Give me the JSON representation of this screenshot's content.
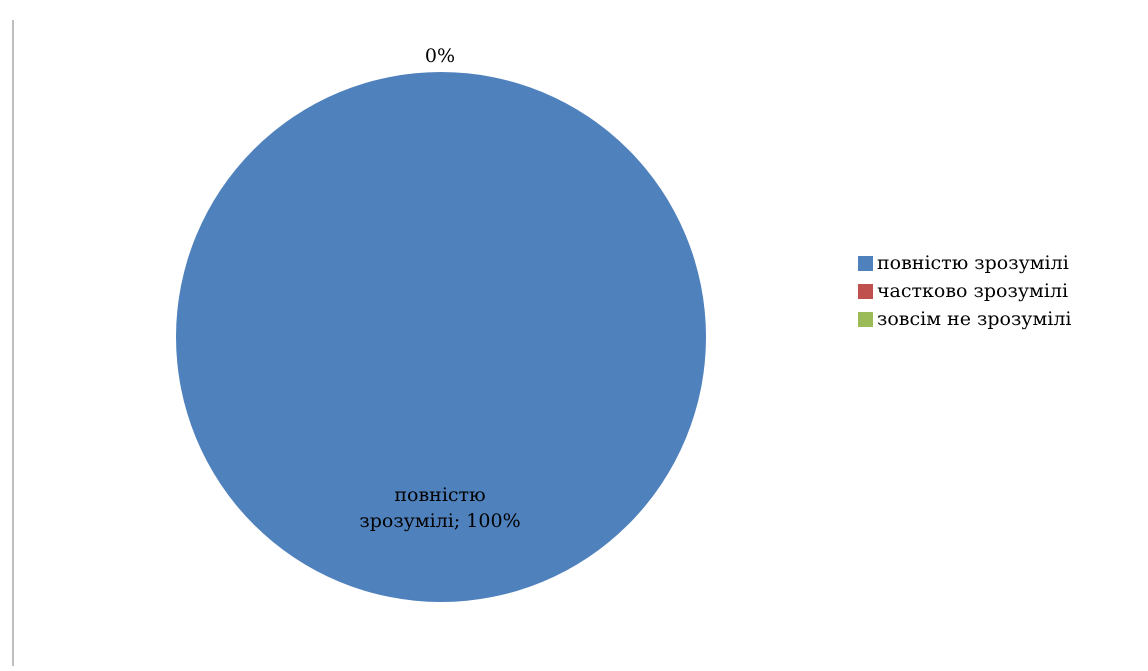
{
  "chart_data": {
    "type": "pie",
    "categories": [
      "повністю зрозумілі",
      "частково зрозумілі",
      "зовсім не зрозумілі"
    ],
    "values": [
      100,
      0,
      0
    ],
    "unit": "%",
    "colors": [
      "#4f81bd",
      "#c0504d",
      "#9bbb59"
    ],
    "data_labels": {
      "main": [
        "повністю",
        "зрозумілі; 100%"
      ],
      "top": "0%"
    },
    "legend_position": "right"
  },
  "legend": {
    "entries": [
      {
        "label": "повністю зрозумілі",
        "color": "#4f81bd"
      },
      {
        "label": "частково зрозумілі",
        "color": "#c0504d"
      },
      {
        "label": "зовсім не зрозумілі",
        "color": "#9bbb59"
      }
    ]
  }
}
